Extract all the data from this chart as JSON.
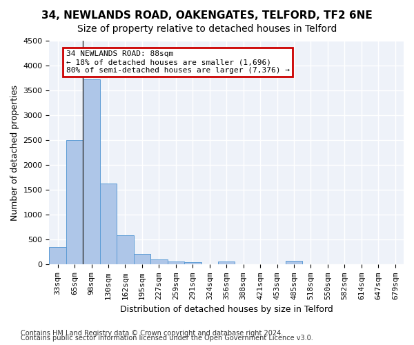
{
  "title": "34, NEWLANDS ROAD, OAKENGATES, TELFORD, TF2 6NE",
  "subtitle": "Size of property relative to detached houses in Telford",
  "xlabel": "Distribution of detached houses by size in Telford",
  "ylabel": "Number of detached properties",
  "categories": [
    "33sqm",
    "65sqm",
    "98sqm",
    "130sqm",
    "162sqm",
    "195sqm",
    "227sqm",
    "259sqm",
    "291sqm",
    "324sqm",
    "356sqm",
    "388sqm",
    "421sqm",
    "453sqm",
    "485sqm",
    "518sqm",
    "550sqm",
    "582sqm",
    "614sqm",
    "647sqm",
    "679sqm"
  ],
  "values": [
    355,
    2500,
    3720,
    1625,
    590,
    220,
    100,
    60,
    50,
    0,
    60,
    0,
    0,
    0,
    70,
    0,
    0,
    0,
    0,
    0,
    0
  ],
  "bar_color": "#aec6e8",
  "bar_edge_color": "#5b9bd5",
  "ylim": [
    0,
    4500
  ],
  "yticks": [
    0,
    500,
    1000,
    1500,
    2000,
    2500,
    3000,
    3500,
    4000,
    4500
  ],
  "annotation_line1": "34 NEWLANDS ROAD: 88sqm",
  "annotation_line2": "← 18% of detached houses are smaller (1,696)",
  "annotation_line3": "80% of semi-detached houses are larger (7,376) →",
  "annotation_box_color": "#cc0000",
  "property_line_x": 1.5,
  "footnote1": "Contains HM Land Registry data © Crown copyright and database right 2024.",
  "footnote2": "Contains public sector information licensed under the Open Government Licence v3.0.",
  "title_fontsize": 11,
  "subtitle_fontsize": 10,
  "axis_label_fontsize": 9,
  "tick_fontsize": 8,
  "annotation_fontsize": 8,
  "footnote_fontsize": 7,
  "background_color": "#eef2f9",
  "grid_color": "#ffffff",
  "fig_bg_color": "#ffffff"
}
